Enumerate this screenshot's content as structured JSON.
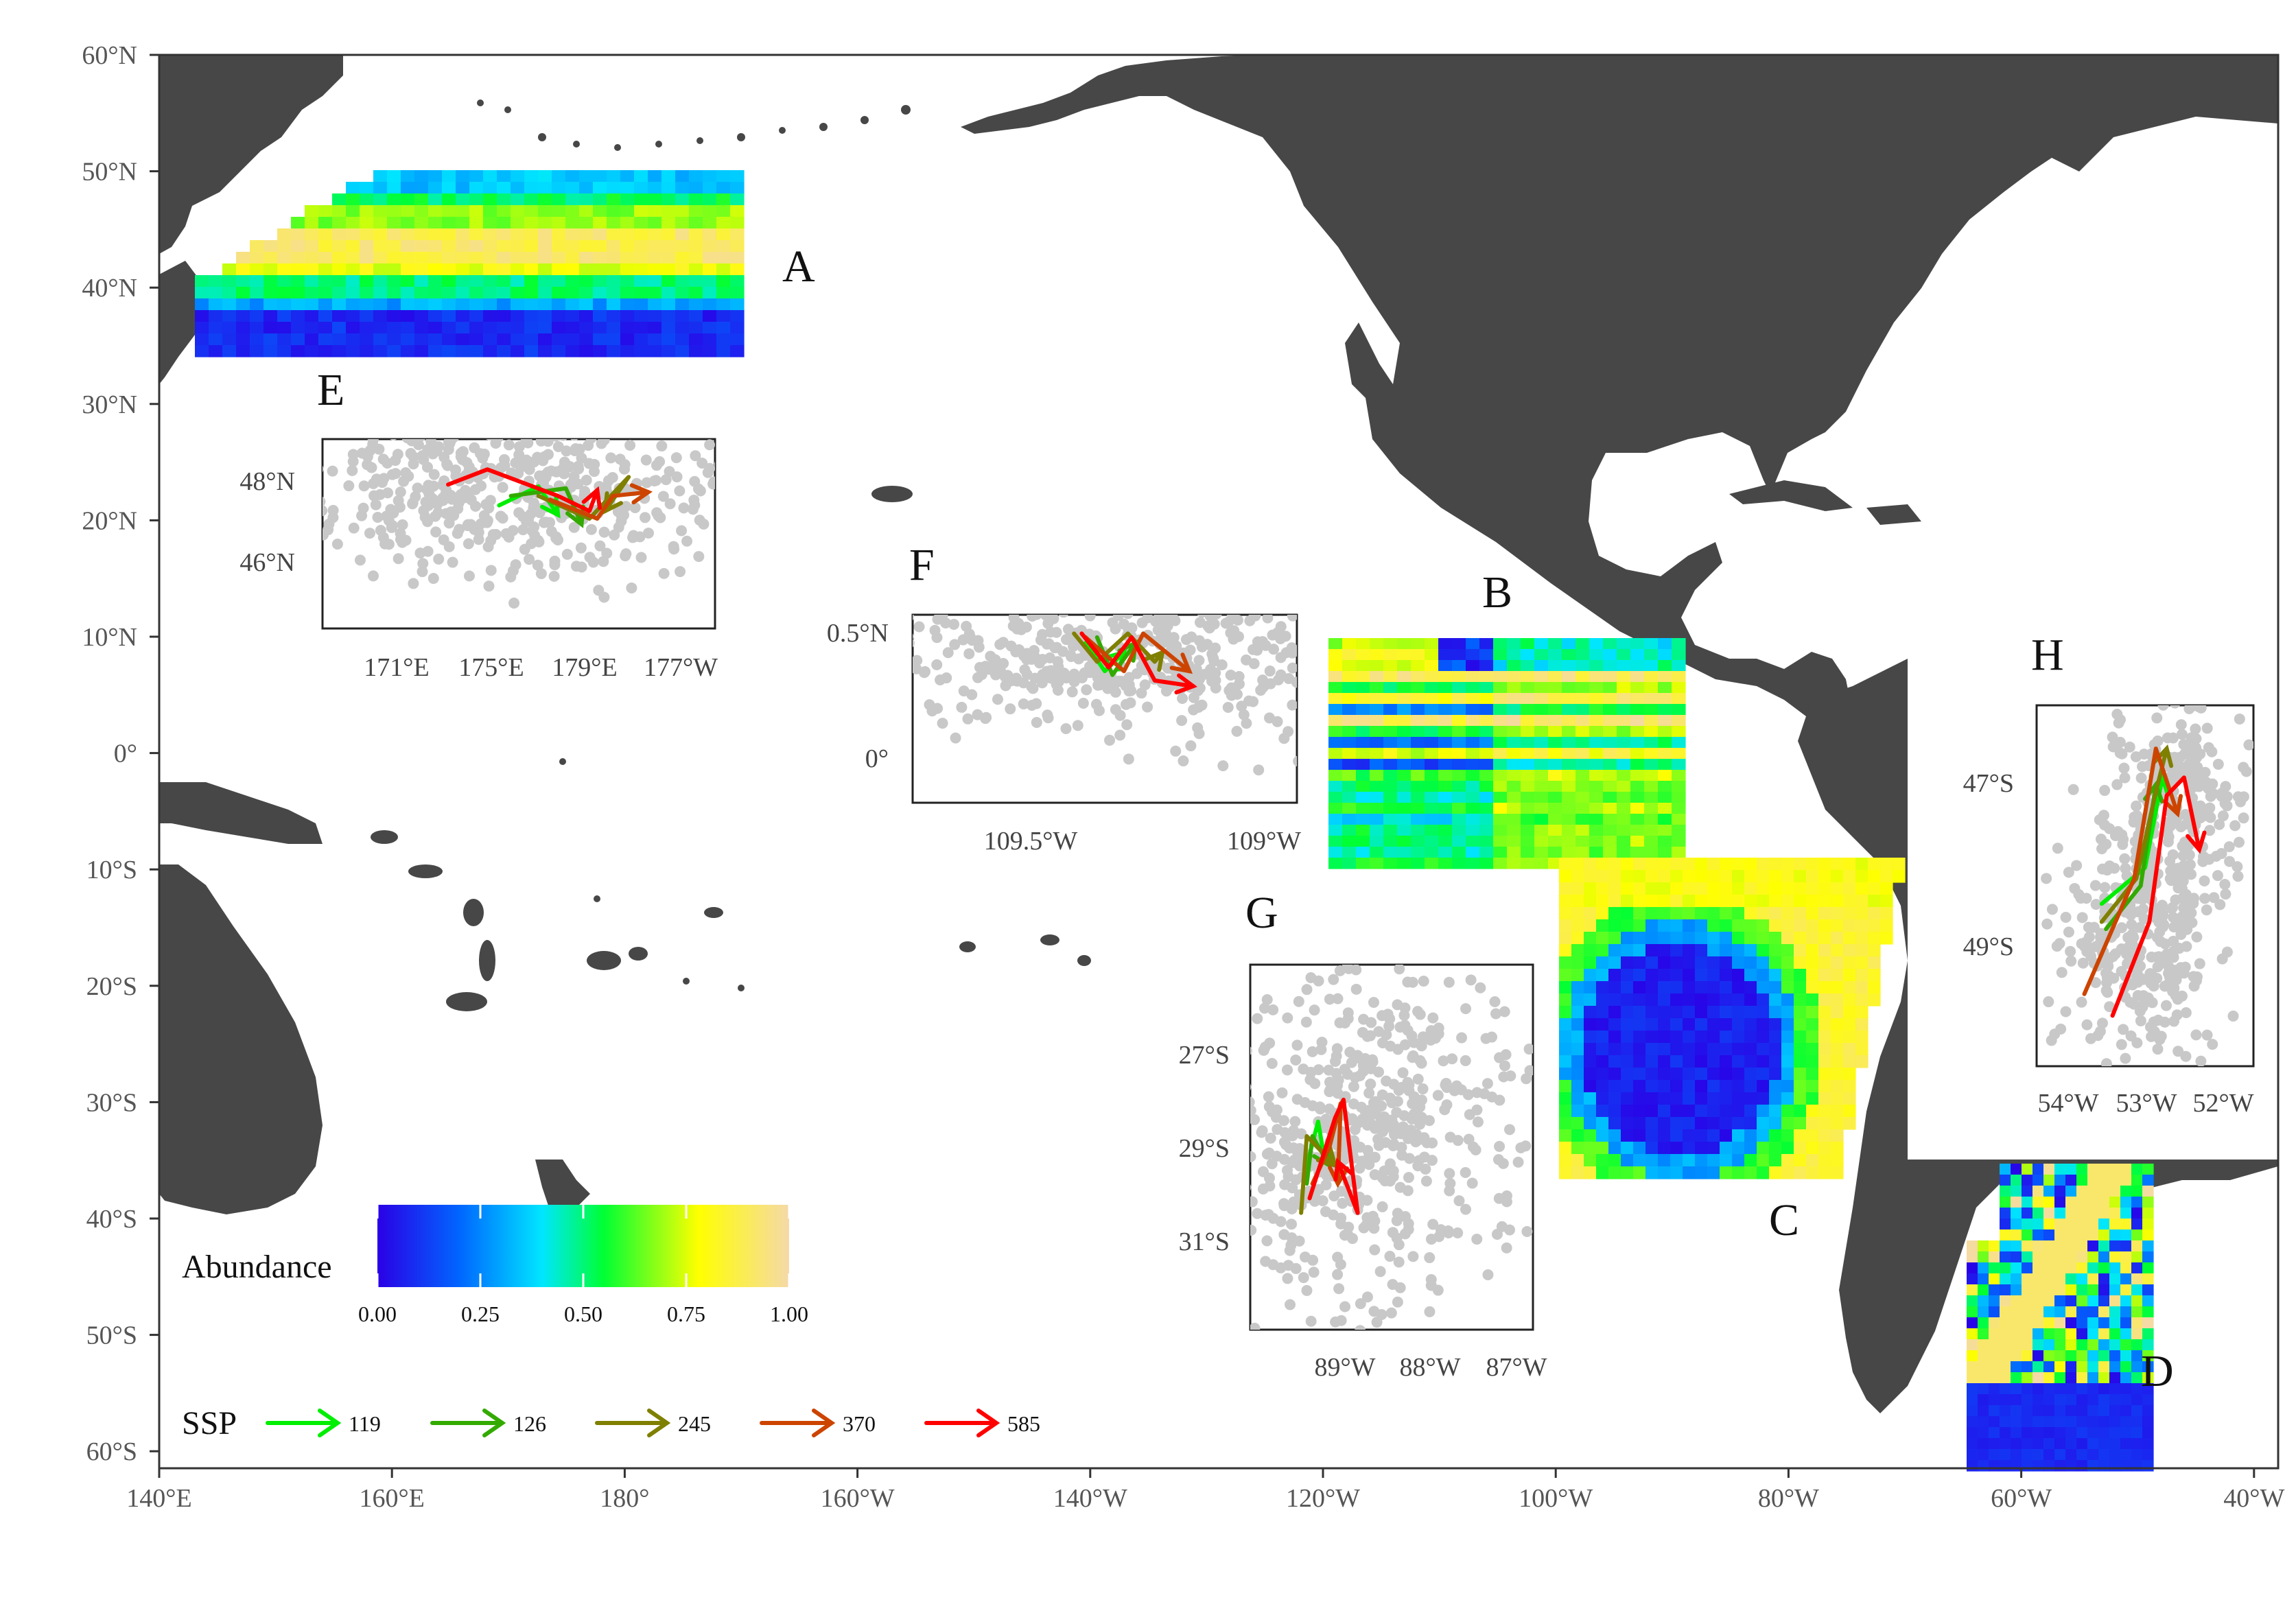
{
  "map": {
    "lat_ticks": [
      "60°N",
      "50°N",
      "40°N",
      "30°N",
      "20°N",
      "10°N",
      "0°",
      "10°S",
      "20°S",
      "30°S",
      "40°S",
      "50°S",
      "60°S"
    ],
    "lon_ticks": [
      "140°E",
      "160°E",
      "180°",
      "160°W",
      "140°W",
      "120°W",
      "100°W",
      "80°W",
      "60°W",
      "40°W"
    ],
    "land_color": "#474747",
    "panel_labels": {
      "A": "A",
      "B": "B",
      "C": "C",
      "D": "D",
      "E": "E",
      "F": "F",
      "G": "G",
      "H": "H"
    }
  },
  "insets": {
    "E": {
      "y_ticks": [
        "48°N",
        "46°N"
      ],
      "x_ticks": [
        "171°E",
        "175°E",
        "179°E",
        "177°W"
      ]
    },
    "F": {
      "y_ticks": [
        "0.5°N",
        "0°"
      ],
      "x_ticks": [
        "109.5°W",
        "109°W"
      ]
    },
    "G": {
      "y_ticks": [
        "27°S",
        "29°S",
        "31°S"
      ],
      "x_ticks": [
        "89°W",
        "88°W",
        "87°W"
      ]
    },
    "H": {
      "y_ticks": [
        "47°S",
        "49°S"
      ],
      "x_ticks": [
        "54°W",
        "53°W",
        "52°W"
      ]
    }
  },
  "legend": {
    "abundance_title": "Abundance",
    "abundance_ticks": [
      "0.00",
      "0.25",
      "0.50",
      "0.75",
      "1.00"
    ],
    "abundance_colors": [
      "#2a00e6",
      "#0066ff",
      "#00e6ff",
      "#00ff33",
      "#ffff00",
      "#f5d9a8"
    ],
    "ssp_title": "SSP",
    "ssp": [
      {
        "label": "119",
        "color": "#00ee00"
      },
      {
        "label": "126",
        "color": "#33aa00"
      },
      {
        "label": "245",
        "color": "#7f7f00"
      },
      {
        "label": "370",
        "color": "#cc4400"
      },
      {
        "label": "585",
        "color": "#ff0000"
      }
    ]
  },
  "chart_data": {
    "type": "map",
    "x_range": [
      "140°E",
      "40°W"
    ],
    "y_range": [
      "60°S",
      "60°N"
    ],
    "regions": [
      "A",
      "B",
      "C",
      "D"
    ],
    "insets": [
      "E",
      "F",
      "G",
      "H"
    ],
    "scenarios": [
      "119",
      "126",
      "245",
      "370",
      "585"
    ]
  }
}
